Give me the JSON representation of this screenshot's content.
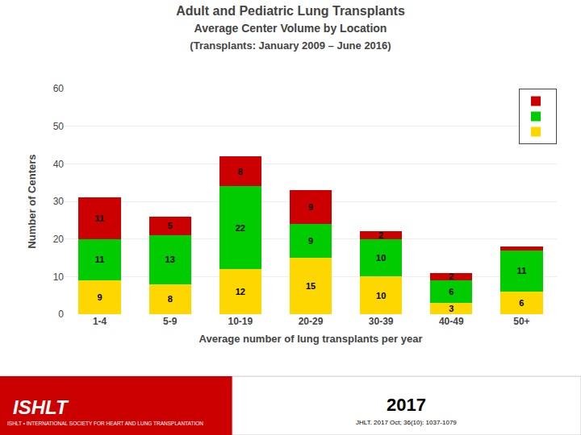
{
  "chart_data": {
    "type": "bar",
    "title": "Adult and Pediatric Lung Transplants",
    "subtitle": [
      "Average Center Volume by Location",
      "(Transplants: January 2009 – June 2016)"
    ],
    "xlabel": "Average number of lung transplants per year",
    "ylabel": "Number of Centers",
    "categories": [
      "1-4",
      "5-9",
      "10-19",
      "20-29",
      "30-39",
      "40-49",
      "50+"
    ],
    "series": [
      {
        "color": "#FFD700",
        "values": [
          9,
          8,
          12,
          15,
          10,
          3,
          6
        ]
      },
      {
        "color": "#00CC00",
        "values": [
          11,
          13,
          22,
          9,
          10,
          6,
          11
        ]
      },
      {
        "color": "#CC0000",
        "values": [
          11,
          5,
          8,
          9,
          2,
          2,
          1
        ],
        "value_labels": [
          "11",
          "5",
          "8",
          "9",
          "2",
          "2",
          null
        ]
      }
    ],
    "stacked": true,
    "data_labels": true,
    "ylim": [
      0,
      60
    ],
    "yticks": [
      0,
      10,
      20,
      30,
      40,
      50,
      60
    ],
    "grid": true,
    "legend": "upper right",
    "annotations": [
      "ISHLT",
      "ISHLT • INTERNATIONAL SOCIETY FOR HEART AND LUNG TRANSPLANTATION",
      "2017",
      "JHLT. 2017 Oct; 36(10): 1037-1079"
    ]
  }
}
